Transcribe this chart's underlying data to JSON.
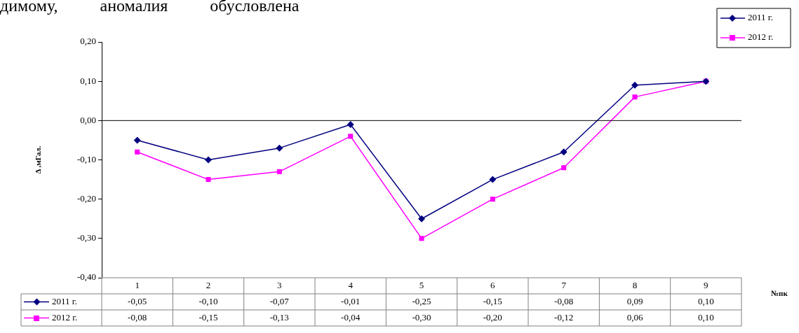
{
  "chart_data": {
    "type": "line",
    "ylabel": "Δ ,мГал.",
    "xlabel": "№пк",
    "annotations": [
      "димому,          аномалия          обусловлена"
    ],
    "categories": [
      "1",
      "2",
      "3",
      "4",
      "5",
      "6",
      "7",
      "8",
      "9"
    ],
    "series": [
      {
        "name": "2011 г.",
        "color": "#000080",
        "marker": "diamond",
        "values": [
          -0.05,
          -0.1,
          -0.07,
          -0.01,
          -0.25,
          -0.15,
          -0.08,
          0.09,
          0.1
        ],
        "value_labels": [
          "-0,05",
          "-0,10",
          "-0,07",
          "-0,01",
          "-0,25",
          "-0,15",
          "-0,08",
          "0,09",
          "0,10"
        ]
      },
      {
        "name": "2012 г.",
        "color": "#ff00ff",
        "marker": "square",
        "values": [
          -0.08,
          -0.15,
          -0.13,
          -0.04,
          -0.3,
          -0.2,
          -0.12,
          0.06,
          0.1
        ],
        "value_labels": [
          "-0,08",
          "-0,15",
          "-0,13",
          "-0,04",
          "-0,30",
          "-0,20",
          "-0,12",
          "0,06",
          "0,10"
        ]
      }
    ],
    "ylim": [
      -0.4,
      0.2
    ],
    "yticks": [
      {
        "value": -0.4,
        "label": "-0,40"
      },
      {
        "value": -0.3,
        "label": "-0,30"
      },
      {
        "value": -0.2,
        "label": "-0,20"
      },
      {
        "value": -0.1,
        "label": "-0,10"
      },
      {
        "value": 0,
        "label": "0,00"
      },
      {
        "value": 0.1,
        "label": "0,10"
      },
      {
        "value": 0.2,
        "label": "0,20"
      }
    ],
    "ref_lines": [
      {
        "axis": "y",
        "value": 0,
        "color": "#000000"
      }
    ],
    "grid": false,
    "legend": "top right",
    "line_style": "solid"
  }
}
